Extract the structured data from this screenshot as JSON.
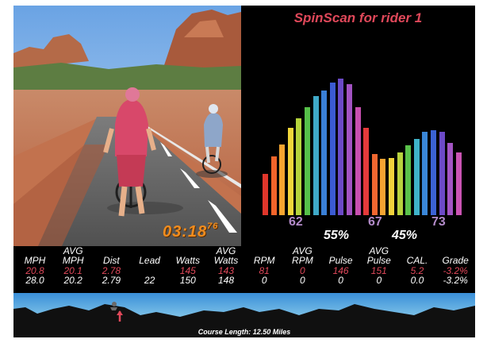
{
  "timer": {
    "main": "03:18",
    "fraction": "76"
  },
  "spinscan": {
    "title": "SpinScan for rider 1",
    "left_value": "62",
    "right_value": "67",
    "avg_value": "73",
    "left_pct": "55%",
    "right_pct": "45%",
    "bar_colors": [
      "#e0362b",
      "#f2642a",
      "#f6a530",
      "#f0d63a",
      "#b5d43c",
      "#56c049",
      "#3fa9c8",
      "#3a7fd6",
      "#3b5bd2",
      "#6b4ac6",
      "#a253c2",
      "#c84fb0",
      "#e43a3a",
      "#f06730",
      "#f5a332",
      "#f2d23c",
      "#b8d33e",
      "#5ac24a",
      "#3fb3c9",
      "#3a86d8",
      "#3b62d4",
      "#6c4ac7",
      "#a355c3",
      "#cb54b4"
    ],
    "bar_levels": [
      0.3,
      0.43,
      0.52,
      0.64,
      0.71,
      0.79,
      0.87,
      0.91,
      0.97,
      1.0,
      0.96,
      0.79,
      0.64,
      0.45,
      0.41,
      0.42,
      0.46,
      0.51,
      0.56,
      0.61,
      0.62,
      0.61,
      0.53,
      0.46
    ]
  },
  "stats": {
    "columns": [
      {
        "h1": "",
        "h2": "MPH",
        "red": "20.8",
        "white": "28.0"
      },
      {
        "h1": "AVG",
        "h2": "MPH",
        "red": "20.1",
        "white": "20.2"
      },
      {
        "h1": "",
        "h2": "Dist",
        "red": "2.78",
        "white": "2.79"
      },
      {
        "h1": "",
        "h2": "Lead",
        "red": "",
        "white": "22"
      },
      {
        "h1": "",
        "h2": "Watts",
        "red": "145",
        "white": "150"
      },
      {
        "h1": "AVG",
        "h2": "Watts",
        "red": "143",
        "white": "148"
      },
      {
        "h1": "",
        "h2": "RPM",
        "red": "81",
        "white": "0"
      },
      {
        "h1": "AVG",
        "h2": "RPM",
        "red": "0",
        "white": "0"
      },
      {
        "h1": "",
        "h2": "Pulse",
        "red": "146",
        "white": "0"
      },
      {
        "h1": "AVG",
        "h2": "Pulse",
        "red": "151",
        "white": "0"
      },
      {
        "h1": "",
        "h2": "CAL.",
        "red": "5.2",
        "white": "0.0"
      },
      {
        "h1": "",
        "h2": "Grade",
        "red": "-3.2%",
        "white": "-3.2%"
      }
    ]
  },
  "course": {
    "label": "Course Length: 12.50 Miles"
  }
}
